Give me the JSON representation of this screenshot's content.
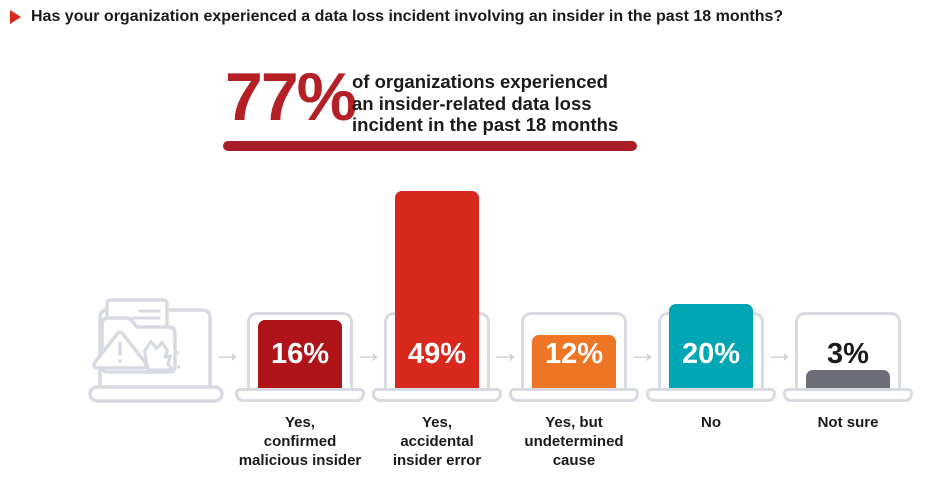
{
  "title": {
    "text": "Has your organization experienced a data loss incident involving an insider in the past 18 months?"
  },
  "highlight": {
    "stat": "77%",
    "description": "of organizations experienced\nan insider-related data loss\nincident in the past 18 months"
  },
  "chart_data": {
    "type": "bar",
    "question": "Has your organization experienced a data loss incident involving an insider in the past 18 months?",
    "categories": [
      "Yes, confirmed malicious insider",
      "Yes, accidental insider error",
      "Yes, but undetermined cause",
      "No",
      "Not sure"
    ],
    "category_lines": [
      [
        "Yes,",
        "confirmed",
        "malicious insider"
      ],
      [
        "Yes,",
        "accidental",
        "insider error"
      ],
      [
        "Yes, but",
        "undetermined",
        "cause"
      ],
      [
        "No"
      ],
      [
        "Not sure"
      ]
    ],
    "values": [
      16,
      49,
      12,
      20,
      3
    ],
    "value_labels": [
      "16%",
      "49%",
      "12%",
      "20%",
      "3%"
    ],
    "bar_colors": [
      "#AE1418",
      "#D9291E",
      "#EE7524",
      "#00A6B4",
      "#6C6D77"
    ],
    "value_label_colors": [
      "#FFFFFF",
      "#FFFFFF",
      "#FFFFFF",
      "#FFFFFF",
      "#1B1B1D"
    ],
    "unit": "%",
    "ylim": [
      0,
      50
    ],
    "grid": false,
    "legend": false
  },
  "icons": {
    "bullet": "right-pointing-triangle",
    "flow_arrow": "→",
    "illustration": "laptop with folder, warning triangle and shredded document"
  },
  "colors": {
    "stat_red": "#B51F26",
    "underline_red": "#A81D28",
    "text_dark": "#1B1B1D",
    "outline_gray": "#D7DAE2",
    "arrow_gray": "#C7CBD4"
  }
}
